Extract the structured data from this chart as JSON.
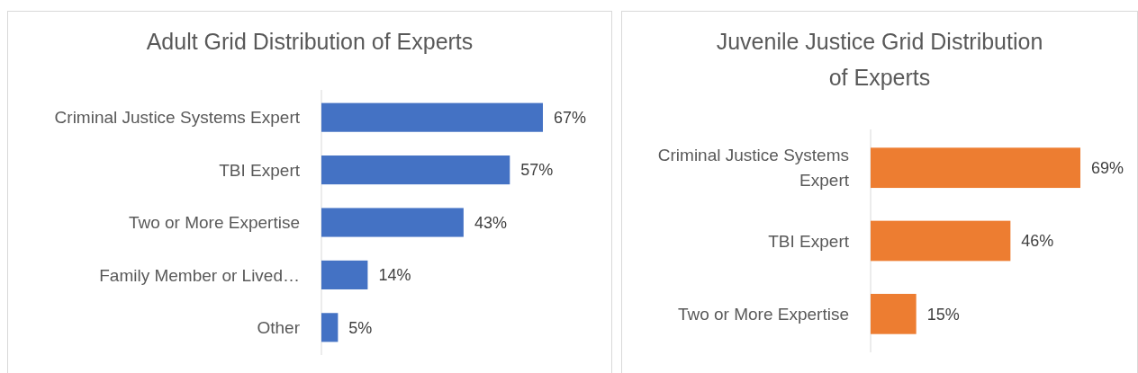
{
  "chart_data": [
    {
      "type": "bar",
      "orientation": "horizontal",
      "title": "Adult Grid Distribution of Experts",
      "categories": [
        "Criminal Justice Systems Expert",
        "TBI Expert",
        "Two or More Expertise",
        "Family Member or Lived…",
        "Other"
      ],
      "values": [
        67,
        57,
        43,
        14,
        5
      ],
      "value_labels": [
        "67%",
        "57%",
        "43%",
        "14%",
        "5%"
      ],
      "color": "#4472c4"
    },
    {
      "type": "bar",
      "orientation": "horizontal",
      "title": "Juvenile Justice Grid Distribution of Experts",
      "categories": [
        "Criminal Justice Systems Expert",
        "TBI Expert",
        "Two or More Expertise"
      ],
      "values": [
        69,
        46,
        15
      ],
      "value_labels": [
        "69%",
        "46%",
        "15%"
      ],
      "color": "#ed7d31"
    }
  ]
}
